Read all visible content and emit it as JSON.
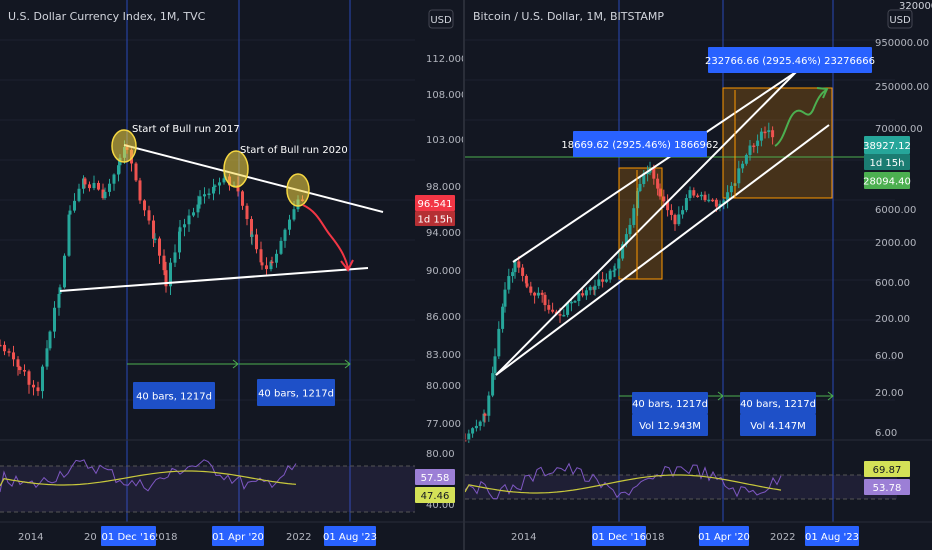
{
  "charts": {
    "left": {
      "title": "U.S. Dollar Currency Index, 1M, TVC",
      "currency": "USD",
      "price_labels": [
        "112.000",
        "108.000",
        "103.000",
        "98.000",
        "94.000",
        "90.000",
        "86.000",
        "83.000",
        "80.000",
        "77.000"
      ],
      "rsi_labels": [
        "80.00",
        "40.00"
      ],
      "x_labels": [
        "2014",
        "20",
        "2018",
        "2022"
      ],
      "annotations": [
        "Start of Bull run 2017",
        "Start of Bull run 2020"
      ],
      "range_boxes": [
        "40 bars, 1217d",
        "40 bars, 1217d"
      ],
      "price_tag": {
        "value": "96.541",
        "countdown": "1d 15h"
      },
      "rsi_tags": {
        "rsi": "57.58",
        "ma": "47.46"
      },
      "date_tags": [
        "01 Dec '16",
        "01 Apr '20",
        "01 Aug '23"
      ]
    },
    "right": {
      "title": "Bitcoin / U.S. Dollar, 1M, BITSTAMP",
      "currency": "USD",
      "top_label": "320000.00",
      "price_labels": [
        "950000.00",
        "250000.00",
        "70000.00",
        "6000.00",
        "2000.00",
        "600.00",
        "200.00",
        "60.00",
        "20.00",
        "6.00"
      ],
      "x_labels": [
        "2014",
        "2018",
        "2022"
      ],
      "range_boxes": [
        "40 bars, 1217d",
        "40 bars, 1217d"
      ],
      "vol_boxes": [
        "Vol 12.943M",
        "Vol 4.147M"
      ],
      "measure_boxes": [
        "18669.62 (2925.46%) 1866962",
        "232766.66 (2925.46%) 23276666"
      ],
      "price_tag": {
        "value": "38927.12",
        "countdown": "1d 15h"
      },
      "support_tag": "28094.40",
      "rsi_tags": {
        "rsi": "69.87",
        "ma": "53.78"
      },
      "date_tags": [
        "01 Dec '16",
        "01 Apr '20",
        "01 Aug '23"
      ]
    }
  },
  "colors": {
    "background": "#131722",
    "up": "#26a69a",
    "down": "#ef5350",
    "arrow_down": "#f23645",
    "arrow_up": "#4caf50",
    "rsi": "#7e57c2",
    "rsi_ma": "#c8c83c",
    "tag_blue": "#2962ff",
    "range_box": "#1e50c8",
    "ellipse": "#f5d742",
    "support_line": "#4caf50",
    "box_fill": "#ff9800"
  },
  "chart_data": [
    {
      "type": "line",
      "title": "U.S. Dollar Currency Index, 1M, TVC",
      "note_values_are_approximate": true,
      "x": [
        "2012-01",
        "2013-01",
        "2014-01",
        "2014-07",
        "2015-01",
        "2015-03",
        "2016-01",
        "2016-12",
        "2017-06",
        "2018-02",
        "2019-01",
        "2020-03",
        "2021-01",
        "2021-06",
        "2022-01",
        "2022-06",
        "2023-01"
      ],
      "series": [
        {
          "values": [
            79.5,
            80.5,
            80.2,
            80.0,
            92.0,
            98.5,
            97.5,
            102.5,
            96.5,
            88.5,
            96.5,
            99.5,
            90.0,
            90.5,
            96.0,
            98.0,
            94.0
          ]
        }
      ],
      "ylim": [
        76,
        114
      ]
    },
    {
      "type": "line",
      "title": "Bitcoin / U.S. Dollar, 1M, BITSTAMP",
      "ylog": true,
      "note_values_are_approximate": true,
      "x": [
        "2012-06",
        "2013-06",
        "2013-12",
        "2014-06",
        "2015-01",
        "2016-01",
        "2016-12",
        "2017-12",
        "2018-12",
        "2019-06",
        "2020-03",
        "2020-12",
        "2021-04",
        "2021-07",
        "2022-01"
      ],
      "series": [
        {
          "values": [
            6,
            100,
            1000,
            600,
            200,
            400,
            900,
            18000,
            3500,
            12000,
            5000,
            29000,
            60000,
            33000,
            39000
          ]
        }
      ],
      "ylim": [
        3,
        1200000
      ]
    }
  ]
}
